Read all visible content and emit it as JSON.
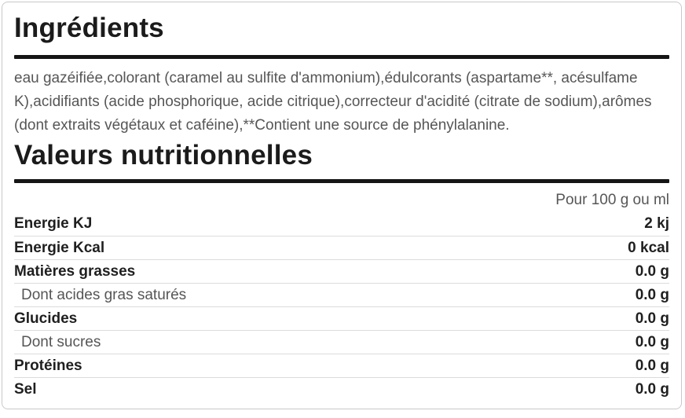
{
  "ingredients_section": {
    "title": "Ingrédients",
    "text": "eau gazéifiée,colorant (caramel au sulfite d'ammonium),édulcorants (aspartame**, acésulfame K),acidifiants (acide phosphorique, acide citrique),correcteur d'acidité (citrate de sodium),arômes (dont extraits végétaux et caféine),**Contient une source de phénylalanine."
  },
  "nutrition_section": {
    "title": "Valeurs nutritionnelles",
    "column_header": "Pour 100 g ou ml",
    "rows": [
      {
        "label": "Energie KJ",
        "value": "2 kj",
        "sub": false
      },
      {
        "label": "Energie Kcal",
        "value": "0 kcal",
        "sub": false
      },
      {
        "label": "Matières grasses",
        "value": "0.0 g",
        "sub": false
      },
      {
        "label": "Dont acides gras saturés",
        "value": "0.0 g",
        "sub": true
      },
      {
        "label": "Glucides",
        "value": "0.0 g",
        "sub": false
      },
      {
        "label": "Dont sucres",
        "value": "0.0 g",
        "sub": true
      },
      {
        "label": "Protéines",
        "value": "0.0 g",
        "sub": false
      },
      {
        "label": "Sel",
        "value": "0.0 g",
        "sub": false
      }
    ]
  },
  "colors": {
    "heading-text": "#1b1b1b",
    "body-text": "#565656",
    "value-text": "#1f1f1f",
    "rule": "#151515",
    "row-divider": "#dcdcdc",
    "card-border": "#c9c9c9",
    "background": "#ffffff"
  }
}
